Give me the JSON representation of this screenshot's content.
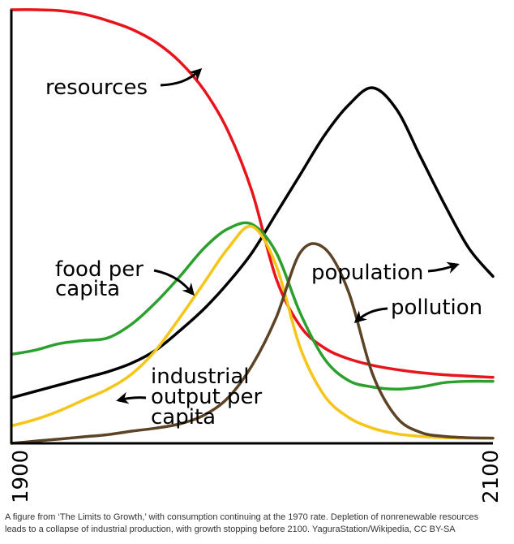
{
  "chart_data": {
    "type": "line",
    "xlim": [
      1900,
      2100
    ],
    "ylim": [
      0,
      1
    ],
    "ticks": {
      "x_start": "1900",
      "x_end": "2100"
    },
    "series": [
      {
        "name": "resources",
        "color": "#e8141c",
        "x": [
          1900,
          1910,
          1920,
          1930,
          1940,
          1950,
          1960,
          1970,
          1980,
          1990,
          2000,
          2010,
          2020,
          2030,
          2040,
          2050,
          2060,
          2070,
          2080,
          2090,
          2100
        ],
        "y": [
          1.0,
          1.0,
          0.998,
          0.99,
          0.975,
          0.955,
          0.925,
          0.88,
          0.815,
          0.72,
          0.58,
          0.38,
          0.27,
          0.22,
          0.195,
          0.18,
          0.17,
          0.163,
          0.158,
          0.155,
          0.152
        ]
      },
      {
        "name": "population",
        "color": "#000000",
        "x": [
          1900,
          1910,
          1920,
          1930,
          1940,
          1950,
          1960,
          1970,
          1980,
          1990,
          2000,
          2010,
          2020,
          2030,
          2040,
          2050,
          2060,
          2070,
          2080,
          2090,
          2100
        ],
        "y": [
          0.105,
          0.12,
          0.135,
          0.15,
          0.165,
          0.185,
          0.215,
          0.26,
          0.31,
          0.37,
          0.44,
          0.53,
          0.62,
          0.71,
          0.78,
          0.82,
          0.77,
          0.66,
          0.55,
          0.45,
          0.385
        ]
      },
      {
        "name": "food per capita",
        "color": "#2ca02c",
        "x": [
          1900,
          1910,
          1920,
          1930,
          1940,
          1950,
          1960,
          1970,
          1980,
          1990,
          2000,
          2010,
          2020,
          2030,
          2040,
          2050,
          2060,
          2070,
          2080,
          2090,
          2100
        ],
        "y": [
          0.205,
          0.215,
          0.23,
          0.237,
          0.243,
          0.275,
          0.325,
          0.385,
          0.45,
          0.495,
          0.505,
          0.44,
          0.3,
          0.195,
          0.145,
          0.13,
          0.125,
          0.13,
          0.14,
          0.143,
          0.143
        ]
      },
      {
        "name": "industrial output per capita",
        "color": "#f5c518",
        "x": [
          1900,
          1910,
          1920,
          1930,
          1940,
          1950,
          1960,
          1970,
          1980,
          1990,
          2000,
          2010,
          2020,
          2030,
          2040,
          2050,
          2060,
          2070,
          2080,
          2090,
          2100
        ],
        "y": [
          0.04,
          0.055,
          0.075,
          0.1,
          0.125,
          0.16,
          0.215,
          0.29,
          0.37,
          0.45,
          0.5,
          0.41,
          0.22,
          0.11,
          0.06,
          0.035,
          0.022,
          0.016,
          0.013,
          0.012,
          0.012
        ]
      },
      {
        "name": "pollution",
        "color": "#5c4326",
        "x": [
          1900,
          1910,
          1920,
          1930,
          1940,
          1950,
          1960,
          1970,
          1980,
          1990,
          2000,
          2010,
          2020,
          2030,
          2040,
          2050,
          2060,
          2070,
          2080,
          2090,
          2100
        ],
        "y": [
          0.0,
          0.005,
          0.01,
          0.015,
          0.02,
          0.028,
          0.035,
          0.045,
          0.065,
          0.105,
          0.18,
          0.29,
          0.44,
          0.45,
          0.35,
          0.16,
          0.06,
          0.025,
          0.016,
          0.013,
          0.012
        ]
      }
    ],
    "annotations": [
      {
        "id": "resources",
        "text": [
          "resources"
        ]
      },
      {
        "id": "food",
        "text": [
          "food per",
          "capita"
        ]
      },
      {
        "id": "population",
        "text": [
          "population"
        ]
      },
      {
        "id": "pollution",
        "text": [
          "pollution"
        ]
      },
      {
        "id": "industrial",
        "text": [
          "industrial",
          "output per",
          "capita"
        ]
      }
    ]
  },
  "caption": "A figure from ‘The Limits to Growth,’ with consumption continuing at the 1970 rate. Depletion of nonrenewable resources leads to a collapse of industrial production, with growth stopping before 2100. YaguraStation/Wikipedia, CC BY-SA"
}
